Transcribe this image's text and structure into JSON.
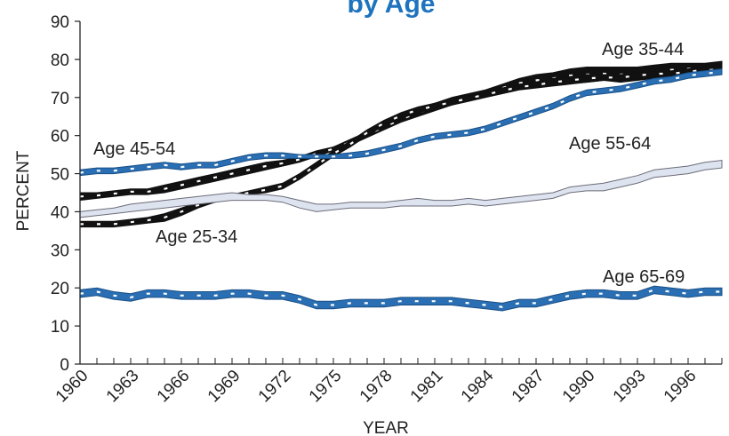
{
  "chart_data": {
    "type": "line",
    "title": "by Age",
    "xlabel": "YEAR",
    "ylabel": "PERCENT",
    "xlim": [
      1960,
      1998
    ],
    "ylim": [
      0,
      90
    ],
    "x_ticks": [
      "1960",
      "1963",
      "1966",
      "1969",
      "1972",
      "1975",
      "1978",
      "1981",
      "1984",
      "1987",
      "1990",
      "1993",
      "1996"
    ],
    "y_ticks": [
      "0",
      "10",
      "20",
      "30",
      "40",
      "50",
      "60",
      "70",
      "80",
      "90"
    ],
    "grid": false,
    "x": [
      1960,
      1961,
      1962,
      1963,
      1964,
      1965,
      1966,
      1967,
      1968,
      1969,
      1970,
      1971,
      1972,
      1973,
      1974,
      1975,
      1976,
      1977,
      1978,
      1979,
      1980,
      1981,
      1982,
      1983,
      1984,
      1985,
      1986,
      1987,
      1988,
      1989,
      1990,
      1991,
      1992,
      1993,
      1994,
      1995,
      1996,
      1997,
      1998
    ],
    "series": [
      {
        "name": "Age 35-44",
        "style": "black-white-dash",
        "upper": [
          45,
          45,
          45.5,
          46,
          46,
          47,
          48,
          49,
          50,
          51,
          52,
          53,
          53.5,
          54.5,
          56,
          57,
          59,
          61,
          63,
          65,
          67,
          68.5,
          70,
          71,
          72,
          73.5,
          75,
          76,
          76.5,
          77.5,
          78,
          78,
          78,
          78,
          78.5,
          79,
          79,
          79,
          79.5
        ],
        "lower": [
          43,
          43.5,
          44,
          44.5,
          44.5,
          45,
          46,
          47,
          48,
          49,
          50,
          51,
          52,
          53,
          54.5,
          56,
          57.5,
          59.5,
          61.5,
          63.5,
          65,
          66.5,
          68,
          69.5,
          70.5,
          71.5,
          72.5,
          73,
          73.5,
          74,
          74,
          74.5,
          74,
          74.5,
          75,
          75.5,
          76,
          76.5,
          77
        ]
      },
      {
        "name": "Age 25-34",
        "style": "black-white-dash",
        "upper": [
          37.5,
          37.5,
          37.5,
          38,
          38.5,
          39.5,
          41,
          42.5,
          43.5,
          44.5,
          45.5,
          46.5,
          47.5,
          50,
          53,
          56,
          58.5,
          61.5,
          64,
          66,
          67.5,
          68.5,
          69.5,
          70.5,
          71.5,
          72.5,
          73.5,
          74,
          75,
          75.5,
          76,
          76,
          76,
          76.5,
          77,
          77,
          77.5,
          78,
          78.5
        ],
        "lower": [
          36,
          36,
          36,
          36.5,
          37,
          37.5,
          39,
          41,
          42.5,
          43.5,
          44.5,
          45,
          46,
          48.5,
          51.5,
          54.5,
          57,
          60,
          62.5,
          64.5,
          66,
          67,
          68,
          69,
          70,
          71,
          72,
          72.5,
          73,
          73.5,
          74,
          74.5,
          74.5,
          75,
          75.5,
          75.5,
          76,
          76.5,
          76
        ]
      },
      {
        "name": "Age 45-54",
        "style": "blue-white-dash",
        "upper": [
          51,
          51.5,
          51.5,
          52,
          52.5,
          53,
          52.5,
          53,
          53,
          54,
          55,
          55.5,
          55.5,
          55,
          55,
          55,
          55.5,
          56,
          57,
          58,
          59.5,
          60.5,
          61,
          61.5,
          62.5,
          64,
          65.5,
          67,
          68.5,
          70.5,
          72,
          72.5,
          73,
          74,
          75,
          75.5,
          76.5,
          77,
          77.5
        ],
        "lower": [
          49.5,
          50,
          50,
          50.5,
          51,
          51.5,
          51,
          51.5,
          51.5,
          52.5,
          53.5,
          54,
          54,
          54,
          54,
          54,
          54,
          54.5,
          55.5,
          56.5,
          58,
          59,
          59.5,
          60,
          61,
          62.5,
          64,
          65.5,
          67,
          69,
          70.5,
          71,
          71.5,
          72.5,
          73.5,
          74,
          75,
          75.5,
          76
        ]
      },
      {
        "name": "Age 55-64",
        "style": "light-gray",
        "upper": [
          40,
          40.5,
          41,
          42,
          42.5,
          43,
          43.5,
          44,
          44.5,
          45,
          44.5,
          44.5,
          44,
          43,
          42,
          42,
          42.5,
          42.5,
          42.5,
          43,
          43.5,
          43,
          43,
          43.5,
          43,
          43.5,
          44,
          44.5,
          45,
          46.5,
          47,
          47.5,
          48.5,
          49.5,
          51,
          51.5,
          52,
          53,
          53.5
        ],
        "lower": [
          38.5,
          39,
          39.5,
          40,
          40.5,
          41,
          41.5,
          42,
          42.5,
          43,
          43,
          43,
          42.5,
          41,
          40,
          40.5,
          41,
          41,
          41,
          41.5,
          41.5,
          41.5,
          41.5,
          42,
          41.5,
          42,
          42.5,
          43,
          43.5,
          45,
          45.5,
          45.5,
          46.5,
          47.5,
          49,
          49.5,
          50,
          51,
          51.5
        ]
      },
      {
        "name": "Age 65-69",
        "style": "blue-white-dash",
        "upper": [
          19.5,
          20,
          19,
          18.5,
          19.5,
          19.5,
          19,
          19,
          19,
          19.5,
          19.5,
          19,
          19,
          18,
          16.5,
          16.5,
          17,
          17,
          17,
          17.5,
          17.5,
          17.5,
          17.5,
          17,
          16.5,
          16,
          17,
          17,
          18,
          19,
          19.5,
          19.5,
          19,
          19,
          20.5,
          20,
          19.5,
          20,
          20
        ],
        "lower": [
          17.5,
          18,
          17,
          16.5,
          17.5,
          17.5,
          17,
          17,
          17,
          17.5,
          17.5,
          17,
          17,
          16,
          14.5,
          14.5,
          15,
          15,
          15,
          15.5,
          15.5,
          15.5,
          15.5,
          15,
          14.5,
          14,
          15,
          15,
          16,
          17,
          17.5,
          17.5,
          17,
          17,
          18.5,
          18,
          17.5,
          18,
          18
        ]
      }
    ],
    "annotations": [
      {
        "text": "Age 35-44",
        "series": "Age 35-44"
      },
      {
        "text": "Age 45-54",
        "series": "Age 45-54"
      },
      {
        "text": "Age 55-64",
        "series": "Age 55-64"
      },
      {
        "text": "Age 25-34",
        "series": "Age 25-34"
      },
      {
        "text": "Age 65-69",
        "series": "Age 65-69"
      }
    ],
    "colors": {
      "title": "#1e73be",
      "black_band": "#111111",
      "blue_band": "#2a6fb3",
      "light_band": "#dde3ef",
      "light_band_edge": "#6b6b7a",
      "axis": "#222222",
      "dash": "#ffffff"
    }
  }
}
